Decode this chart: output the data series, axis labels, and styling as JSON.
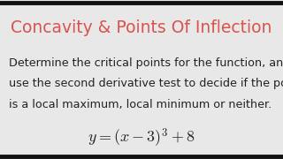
{
  "title": "Concavity & Points Of Inflection",
  "title_color": "#d9534f",
  "body_line1": "Determine the critical points for the function, and",
  "body_line2": "use the second derivative test to decide if the point",
  "body_line3": "is a local maximum, local minimum or neither.",
  "formula": "$y = (x - 3)^3 + 8$",
  "background_color": "#e8e8e8",
  "body_bg_color": "#f0f0f0",
  "text_color": "#222222",
  "title_fontsize": 13.5,
  "body_fontsize": 9.2,
  "formula_fontsize": 13,
  "border_color": "#111111",
  "border_lw": 3.5
}
